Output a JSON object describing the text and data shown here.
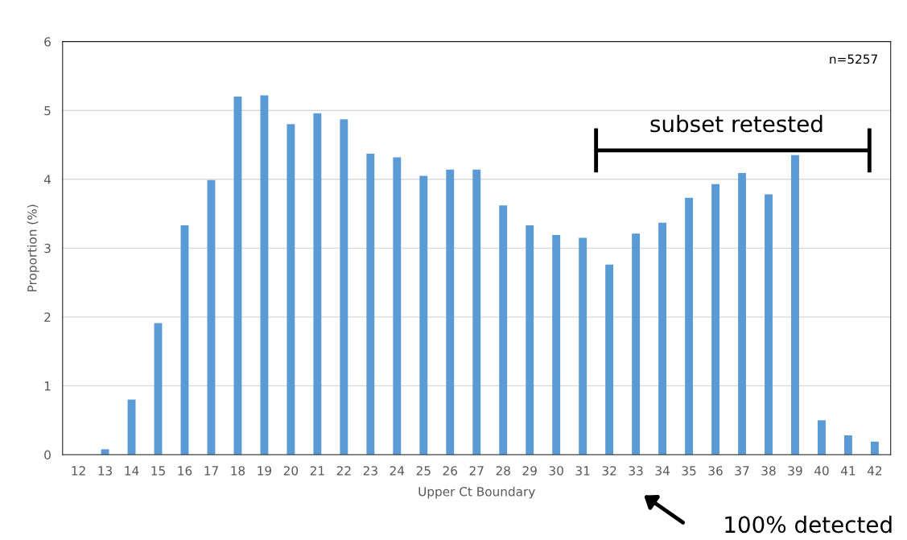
{
  "chart_data": {
    "type": "bar",
    "xlabel": "Upper Ct Boundary",
    "ylabel": "Proportion (%)",
    "categories": [
      "12",
      "13",
      "14",
      "15",
      "16",
      "17",
      "18",
      "19",
      "20",
      "21",
      "22",
      "23",
      "24",
      "25",
      "26",
      "27",
      "28",
      "29",
      "30",
      "31",
      "32",
      "33",
      "34",
      "35",
      "36",
      "37",
      "38",
      "39",
      "40",
      "41",
      "42"
    ],
    "series": [
      {
        "color": "#5b9bd5",
        "values": [
          0,
          0.08,
          0.8,
          1.91,
          3.33,
          3.99,
          5.2,
          5.22,
          4.8,
          4.96,
          4.87,
          4.37,
          4.32,
          4.05,
          4.14,
          4.14,
          3.62,
          3.33,
          3.19,
          3.15,
          2.76,
          3.21,
          3.37,
          3.73,
          3.93,
          4.09,
          3.78,
          4.35,
          0.5,
          0.28,
          0.19
        ]
      }
    ],
    "ylim": [
      0,
      6
    ],
    "yticks": [
      0,
      1,
      2,
      3,
      4,
      5,
      6
    ],
    "grid": "y",
    "annotations": [
      "n=5257",
      "subset retested",
      "100% detected"
    ]
  }
}
